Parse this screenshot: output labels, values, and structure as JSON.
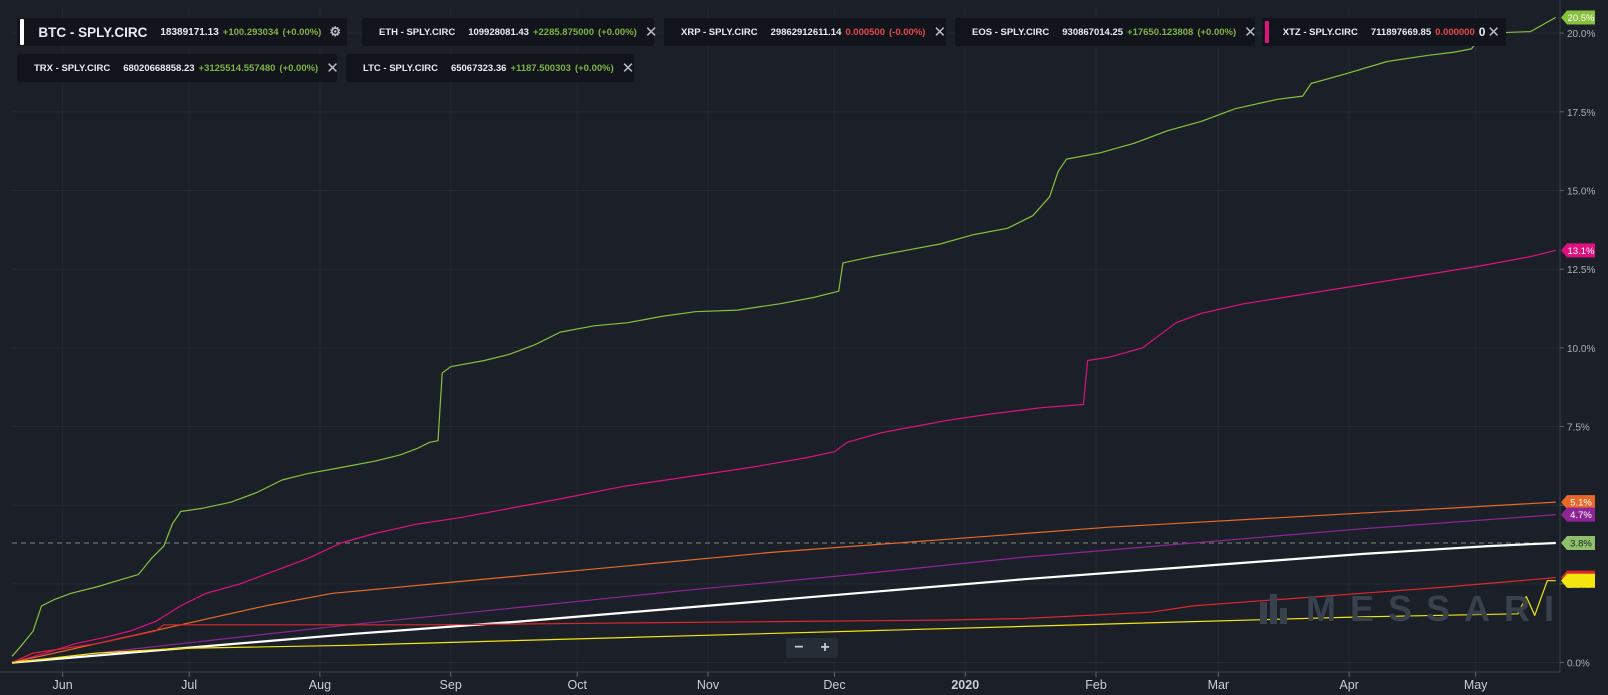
{
  "legend": {
    "btc": {
      "name": "BTC - SPLY.CIRC",
      "value": "18389171.13",
      "change": "+100.293034",
      "pct": "(+0.00%)",
      "color": "#ffffff",
      "change_color": "#7fb343"
    },
    "eth": {
      "name": "ETH - SPLY.CIRC",
      "value": "109928081.43",
      "change": "+2285.875000",
      "pct": "(+0.00%)",
      "color": "#8e2596",
      "change_color": "#7fb343"
    },
    "xrp": {
      "name": "XRP - SPLY.CIRC",
      "value": "29862912611.14",
      "change": "0.000500",
      "pct": "(-0.00%)",
      "color": "#86c03d",
      "change_color": "#e5484d"
    },
    "eos": {
      "name": "EOS - SPLY.CIRC",
      "value": "930867014.25",
      "change": "+17650.123808",
      "pct": "(+0.00%)",
      "color": "#f2e60c",
      "change_color": "#7fb343"
    },
    "xtz": {
      "name": "XTZ - SPLY.CIRC",
      "value": "711897669.85",
      "change": "0.000000",
      "pct": "0",
      "color": "#e0107f",
      "change_color": "#e5484d"
    },
    "trx": {
      "name": "TRX - SPLY.CIRC",
      "value": "68020668858.23",
      "change": "+3125514.557480",
      "pct": "(+0.00%)",
      "color": "#e0262d",
      "change_color": "#7fb343"
    },
    "ltc": {
      "name": "LTC - SPLY.CIRC",
      "value": "65067323.36",
      "change": "+1187.500303",
      "pct": "(+0.00%)",
      "color": "#e8682a",
      "change_color": "#7fb343"
    }
  },
  "close_glyph": "✕",
  "gear_glyph": "⚙",
  "zoom": {
    "minus": "−",
    "plus": "+"
  },
  "watermark": "MESSARI",
  "chart_data": {
    "type": "line",
    "x_ticks": [
      "Jun",
      "Jul",
      "Aug",
      "Sep",
      "Oct",
      "Nov",
      "Dec",
      "2020",
      "Feb",
      "Mar",
      "Apr",
      "May"
    ],
    "x_tick_days": [
      12,
      42,
      73,
      104,
      134,
      165,
      195,
      226,
      257,
      286,
      317,
      347
    ],
    "x_range_days": [
      0,
      367
    ],
    "y_ticks": [
      "0.0%",
      "2.5%",
      "5.0%",
      "7.5%",
      "10.0%",
      "12.5%",
      "15.0%",
      "17.5%",
      "20.0%"
    ],
    "y_tick_values": [
      0,
      2.5,
      5,
      7.5,
      10,
      12.5,
      15,
      17.5,
      20
    ],
    "ylim": [
      -0.3,
      20.8
    ],
    "dashed_reference": 3.8,
    "series": [
      {
        "key": "xrp",
        "color": "#86c03d",
        "end_label": "20.5%",
        "points": [
          [
            0,
            0.2
          ],
          [
            2,
            0.5
          ],
          [
            5,
            1.0
          ],
          [
            7,
            1.8
          ],
          [
            10,
            2.0
          ],
          [
            14,
            2.2
          ],
          [
            20,
            2.4
          ],
          [
            25,
            2.6
          ],
          [
            30,
            2.8
          ],
          [
            33,
            3.3
          ],
          [
            36,
            3.7
          ],
          [
            38,
            4.4
          ],
          [
            40,
            4.8
          ],
          [
            45,
            4.9
          ],
          [
            52,
            5.1
          ],
          [
            58,
            5.4
          ],
          [
            64,
            5.8
          ],
          [
            70,
            6.0
          ],
          [
            78,
            6.2
          ],
          [
            86,
            6.4
          ],
          [
            92,
            6.6
          ],
          [
            96,
            6.8
          ],
          [
            99,
            7.0
          ],
          [
            101,
            7.05
          ],
          [
            102,
            9.2
          ],
          [
            104,
            9.4
          ],
          [
            112,
            9.6
          ],
          [
            118,
            9.8
          ],
          [
            124,
            10.1
          ],
          [
            130,
            10.5
          ],
          [
            138,
            10.7
          ],
          [
            146,
            10.8
          ],
          [
            154,
            11.0
          ],
          [
            162,
            11.15
          ],
          [
            172,
            11.2
          ],
          [
            182,
            11.4
          ],
          [
            190,
            11.6
          ],
          [
            196,
            11.8
          ],
          [
            197,
            12.7
          ],
          [
            204,
            12.9
          ],
          [
            212,
            13.1
          ],
          [
            220,
            13.3
          ],
          [
            228,
            13.6
          ],
          [
            236,
            13.8
          ],
          [
            242,
            14.2
          ],
          [
            246,
            14.8
          ],
          [
            248,
            15.6
          ],
          [
            250,
            16.0
          ],
          [
            258,
            16.2
          ],
          [
            266,
            16.5
          ],
          [
            274,
            16.9
          ],
          [
            282,
            17.2
          ],
          [
            290,
            17.6
          ],
          [
            300,
            17.9
          ],
          [
            306,
            18.0
          ],
          [
            308,
            18.4
          ],
          [
            316,
            18.7
          ],
          [
            326,
            19.1
          ],
          [
            336,
            19.3
          ],
          [
            342,
            19.4
          ],
          [
            346,
            19.5
          ],
          [
            349,
            20.0
          ],
          [
            360,
            20.05
          ],
          [
            366,
            20.5
          ]
        ]
      },
      {
        "key": "xtz",
        "color": "#e0107f",
        "end_label": "13.1%",
        "points": [
          [
            0,
            0
          ],
          [
            8,
            0.3
          ],
          [
            15,
            0.6
          ],
          [
            22,
            0.8
          ],
          [
            28,
            1.0
          ],
          [
            34,
            1.3
          ],
          [
            40,
            1.8
          ],
          [
            46,
            2.2
          ],
          [
            54,
            2.5
          ],
          [
            62,
            2.9
          ],
          [
            70,
            3.3
          ],
          [
            78,
            3.8
          ],
          [
            86,
            4.1
          ],
          [
            96,
            4.4
          ],
          [
            106,
            4.6
          ],
          [
            118,
            4.9
          ],
          [
            130,
            5.2
          ],
          [
            145,
            5.6
          ],
          [
            160,
            5.9
          ],
          [
            175,
            6.2
          ],
          [
            188,
            6.5
          ],
          [
            195,
            6.7
          ],
          [
            198,
            7.0
          ],
          [
            206,
            7.3
          ],
          [
            214,
            7.5
          ],
          [
            222,
            7.7
          ],
          [
            232,
            7.9
          ],
          [
            244,
            8.1
          ],
          [
            254,
            8.2
          ],
          [
            255,
            9.6
          ],
          [
            260,
            9.7
          ],
          [
            268,
            10.0
          ],
          [
            272,
            10.4
          ],
          [
            276,
            10.8
          ],
          [
            282,
            11.1
          ],
          [
            292,
            11.4
          ],
          [
            306,
            11.7
          ],
          [
            320,
            12.0
          ],
          [
            334,
            12.3
          ],
          [
            348,
            12.6
          ],
          [
            360,
            12.9
          ],
          [
            366,
            13.1
          ]
        ]
      },
      {
        "key": "ltc",
        "color": "#e8682a",
        "end_label": "5.1%",
        "points": [
          [
            0,
            0
          ],
          [
            20,
            0.6
          ],
          [
            40,
            1.2
          ],
          [
            60,
            1.8
          ],
          [
            76,
            2.2
          ],
          [
            100,
            2.5
          ],
          [
            140,
            3.0
          ],
          [
            180,
            3.5
          ],
          [
            220,
            3.9
          ],
          [
            260,
            4.3
          ],
          [
            300,
            4.6
          ],
          [
            340,
            4.9
          ],
          [
            366,
            5.1
          ]
        ]
      },
      {
        "key": "eth",
        "color": "#8e2596",
        "end_label": "4.7%",
        "points": [
          [
            0,
            0
          ],
          [
            40,
            0.6
          ],
          [
            80,
            1.2
          ],
          [
            120,
            1.75
          ],
          [
            160,
            2.3
          ],
          [
            200,
            2.8
          ],
          [
            240,
            3.35
          ],
          [
            280,
            3.8
          ],
          [
            320,
            4.25
          ],
          [
            366,
            4.7
          ]
        ]
      },
      {
        "key": "btc",
        "color": "#ffffff",
        "end_label": "3.8%",
        "points": [
          [
            0,
            0
          ],
          [
            40,
            0.45
          ],
          [
            80,
            0.9
          ],
          [
            120,
            1.3
          ],
          [
            160,
            1.75
          ],
          [
            200,
            2.2
          ],
          [
            240,
            2.65
          ],
          [
            280,
            3.05
          ],
          [
            320,
            3.45
          ],
          [
            350,
            3.7
          ],
          [
            366,
            3.8
          ]
        ]
      },
      {
        "key": "trx",
        "color": "#e0262d",
        "end_label": "2.7%",
        "points": [
          [
            0,
            0
          ],
          [
            5,
            0.3
          ],
          [
            20,
            0.6
          ],
          [
            34,
            1.0
          ],
          [
            36,
            1.2
          ],
          [
            60,
            1.2
          ],
          [
            100,
            1.2
          ],
          [
            140,
            1.25
          ],
          [
            180,
            1.3
          ],
          [
            220,
            1.35
          ],
          [
            240,
            1.4
          ],
          [
            270,
            1.6
          ],
          [
            280,
            1.8
          ],
          [
            300,
            2.0
          ],
          [
            320,
            2.2
          ],
          [
            340,
            2.4
          ],
          [
            366,
            2.7
          ]
        ]
      },
      {
        "key": "eos",
        "color": "#f2e60c",
        "end_label": "",
        "points": [
          [
            0,
            0
          ],
          [
            20,
            0.3
          ],
          [
            40,
            0.45
          ],
          [
            80,
            0.55
          ],
          [
            120,
            0.7
          ],
          [
            160,
            0.85
          ],
          [
            200,
            1.0
          ],
          [
            240,
            1.15
          ],
          [
            280,
            1.3
          ],
          [
            320,
            1.45
          ],
          [
            357,
            1.55
          ],
          [
            359,
            2.1
          ],
          [
            361,
            1.5
          ],
          [
            364,
            2.6
          ],
          [
            366,
            2.6
          ]
        ]
      }
    ]
  }
}
